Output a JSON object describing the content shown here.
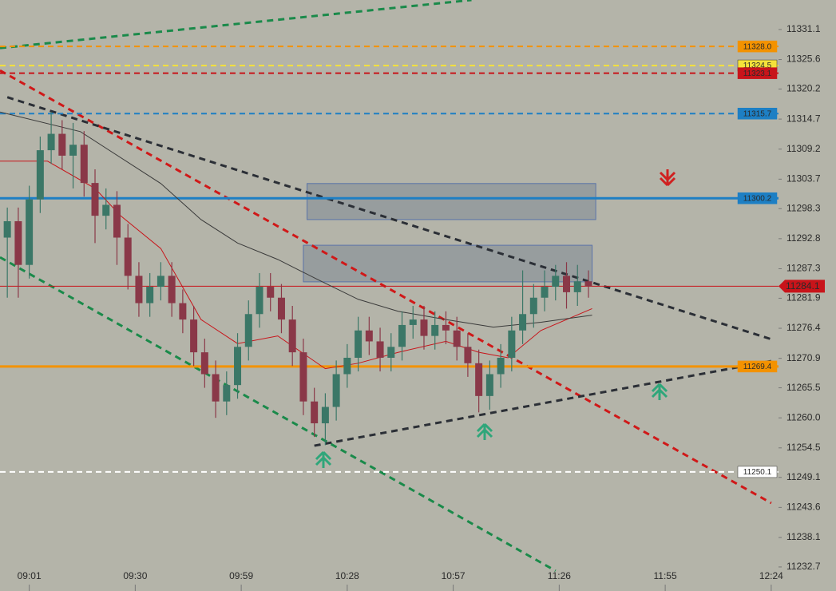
{
  "chart_data": {
    "type": "candlestick",
    "x": [
      "08:55",
      "08:58",
      "09:01",
      "09:04",
      "09:07",
      "09:10",
      "09:13",
      "09:16",
      "09:19",
      "09:22",
      "09:25",
      "09:28",
      "09:31",
      "09:34",
      "09:37",
      "09:40",
      "09:43",
      "09:46",
      "09:49",
      "09:52",
      "09:55",
      "09:58",
      "10:01",
      "10:04",
      "10:07",
      "10:10",
      "10:13",
      "10:16",
      "10:19",
      "10:22",
      "10:25",
      "10:28",
      "10:31",
      "10:34",
      "10:37",
      "10:40",
      "10:43",
      "10:46",
      "10:49",
      "10:52",
      "10:55",
      "10:58",
      "11:01",
      "11:04",
      "11:07",
      "11:10",
      "11:13",
      "11:16",
      "11:19",
      "11:22",
      "11:25",
      "11:28",
      "11:31",
      "11:34"
    ],
    "open": [
      11293,
      11296,
      11288,
      11300,
      11309,
      11312,
      11308,
      11310,
      11303,
      11297,
      11299,
      11293,
      11286,
      11281,
      11284,
      11286,
      11281,
      11278,
      11272,
      11268,
      11263,
      11266,
      11273,
      11279,
      11284,
      11282,
      11278,
      11272,
      11263,
      11259,
      11262,
      11268,
      11271,
      11276,
      11274,
      11271,
      11273,
      11277,
      11278,
      11275,
      11277,
      11276,
      11273,
      11270,
      11264,
      11268,
      11271,
      11276,
      11279,
      11282,
      11284,
      11286,
      11283,
      11285
    ],
    "high": [
      11298.5,
      11298.5,
      11302.5,
      11311.5,
      11316,
      11314.5,
      11314,
      11312.5,
      11305.5,
      11302,
      11301.5,
      11295.5,
      11288.5,
      11286.5,
      11288.5,
      11288.5,
      11283.5,
      11280.5,
      11274.5,
      11270.5,
      11268.5,
      11275.5,
      11281.5,
      11286.5,
      11286.5,
      11284.5,
      11280.5,
      11274.5,
      11265.5,
      11264.5,
      11270.5,
      11273.5,
      11278.5,
      11278.5,
      11276.5,
      11275.5,
      11279.5,
      11280.5,
      11280.5,
      11279.5,
      11279.5,
      11278.5,
      11275.5,
      11272.5,
      11270.5,
      11273.5,
      11278.5,
      11287,
      11284.5,
      11287,
      11288,
      11288.5,
      11288,
      11287
    ],
    "low": [
      11282,
      11282,
      11285.5,
      11297.5,
      11306.5,
      11305.5,
      11302,
      11300.5,
      11292,
      11294.5,
      11288,
      11283.5,
      11278.5,
      11278.5,
      11281.5,
      11278.5,
      11275.5,
      11269.5,
      11265.5,
      11260,
      11260.5,
      11263.5,
      11270.5,
      11276.5,
      11279.5,
      11275.5,
      11269.5,
      11260.5,
      11256.5,
      11255,
      11259.5,
      11265.5,
      11268.5,
      11271.5,
      11268.5,
      11268.5,
      11270.5,
      11274.5,
      11272.5,
      11272.5,
      11273.5,
      11270.5,
      11267.5,
      11261,
      11261.5,
      11265.5,
      11268.5,
      11273.5,
      11276.5,
      11279.5,
      11281.5,
      11280,
      11280.5,
      11282
    ],
    "close": [
      11296,
      11288,
      11300,
      11309,
      11312,
      11308,
      11310,
      11303,
      11297,
      11299,
      11293,
      11286,
      11281,
      11284,
      11286,
      11281,
      11278,
      11272,
      11268,
      11263,
      11266,
      11273,
      11279,
      11284,
      11282,
      11278,
      11272,
      11263,
      11259,
      11262,
      11268,
      11271,
      11276,
      11274,
      11271,
      11273,
      11277,
      11278,
      11275,
      11277,
      11276,
      11273,
      11270,
      11264,
      11268,
      11271,
      11276,
      11279,
      11282,
      11284,
      11286,
      11283,
      11285,
      11284.1
    ],
    "up_color": "#3b7767",
    "down_color": "#8a3848",
    "xlim": [
      "08:53",
      "12:26"
    ],
    "xticks": [
      "09:01",
      "09:30",
      "09:59",
      "10:28",
      "10:57",
      "11:26",
      "11:55",
      "12:24"
    ],
    "ylim": [
      11228.3,
      11336.5
    ],
    "yticks": [
      11331.1,
      11325.6,
      11320.2,
      11314.7,
      11309.2,
      11303.7,
      11298.3,
      11292.8,
      11287.3,
      11281.9,
      11276.4,
      11270.9,
      11265.5,
      {
        "value": 11260,
        "label": "11260.0"
      },
      11254.5,
      11249.1,
      11243.6,
      11238.1,
      11232.7
    ],
    "levels": [
      {
        "value": 11328,
        "label": "11328.0",
        "color": "#f39200",
        "dashed": true
      },
      {
        "value": 11324.5,
        "label": "11324.5",
        "color": "#f5e23a",
        "dashed": true
      },
      {
        "value": 11323.1,
        "label": "11323.1",
        "color": "#c8141a",
        "dashed": true
      },
      {
        "value": 11315.7,
        "label": "11315.7",
        "color": "#1d7fc4",
        "dashed": true
      },
      {
        "value": 11300.2,
        "label": "11300.2",
        "color": "#1d7fc4",
        "dashed": false
      },
      {
        "value": 11269.4,
        "label": "11269.4",
        "color": "#f39200",
        "dashed": false
      },
      {
        "value": 11250.1,
        "label": "11250.1",
        "color": "#ffffff",
        "dashed": true
      }
    ],
    "current_price": {
      "value": 11284.1,
      "color": "#c8141a"
    },
    "zones": [
      {
        "x": [
          "10:17",
          "11:36"
        ],
        "values": [
          11296.3,
          11302.9
        ]
      },
      {
        "x": [
          "10:16",
          "11:35"
        ],
        "values": [
          11284.9,
          11291.6
        ]
      }
    ],
    "trendlines": [
      {
        "x": [
          "08:53",
          "11:02"
        ],
        "values": [
          11327.7,
          11336.5
        ],
        "color": "#1a8a4a"
      },
      {
        "x": [
          "08:53",
          "12:24"
        ],
        "values": [
          11323.6,
          11244.4
        ],
        "color": "#d01818"
      },
      {
        "x": [
          "08:55",
          "12:24"
        ],
        "values": [
          11318.7,
          11274.4
        ],
        "color": "#2b2f36"
      },
      {
        "x": [
          "08:53",
          "11:25"
        ],
        "values": [
          11289.4,
          11232
        ],
        "color": "#1a8a4a"
      },
      {
        "x": [
          "10:19",
          "12:24"
        ],
        "values": [
          11254.9,
          11270.4
        ],
        "color": "#2b2f36"
      }
    ],
    "moving_averages": [
      {
        "color": "#c8141a",
        "x": [
          "08:53",
          "09:06",
          "09:19",
          "09:26",
          "09:37",
          "09:48",
          "09:58",
          "10:09",
          "10:22",
          "10:31",
          "10:42",
          "10:55",
          "11:04",
          "11:12",
          "11:21",
          "11:35"
        ],
        "values": [
          11307,
          11307,
          11302,
          11297,
          11291,
          11278,
          11273.6,
          11275,
          11269,
          11270,
          11272,
          11274,
          11272,
          11271,
          11276,
          11280
        ]
      },
      {
        "color": "#3a3a3a",
        "x": [
          "08:53",
          "09:15",
          "09:37",
          "09:48",
          "09:58",
          "10:09",
          "10:20",
          "10:31",
          "10:42",
          "10:55",
          "11:08",
          "11:21",
          "11:35"
        ],
        "values": [
          11316,
          11312.4,
          11302.9,
          11296.3,
          11292,
          11289,
          11285.3,
          11281.7,
          11279.5,
          11278,
          11276.6,
          11277.5,
          11278.8
        ]
      }
    ]
  }
}
